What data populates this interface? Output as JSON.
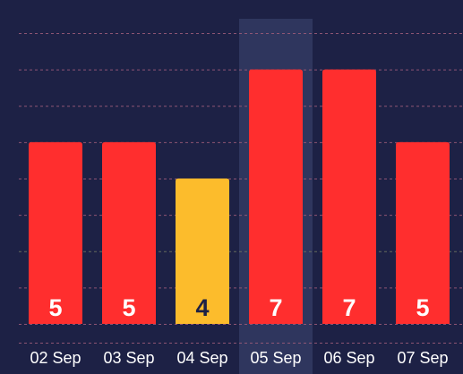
{
  "colors": {
    "background": "#1d2145",
    "bar_default": "#ff2e2e",
    "bar_lowest": "#fcbc2c",
    "grid_line": "#9a5a78",
    "grid_line_mid": "#6f7560",
    "hover_band": "#333a63",
    "value_label_light": "#ffffff",
    "value_label_dark": "#1d2145",
    "category_label": "#ffffff"
  },
  "chart_data": {
    "type": "bar",
    "categories": [
      "02 Sep",
      "03 Sep",
      "04 Sep",
      "05 Sep",
      "06 Sep",
      "07 Sep"
    ],
    "values": [
      5,
      5,
      4,
      7,
      7,
      5
    ],
    "ylim": [
      0,
      8
    ],
    "grid": true,
    "highlighted_category": "05 Sep",
    "title": "",
    "xlabel": "",
    "ylabel": ""
  }
}
